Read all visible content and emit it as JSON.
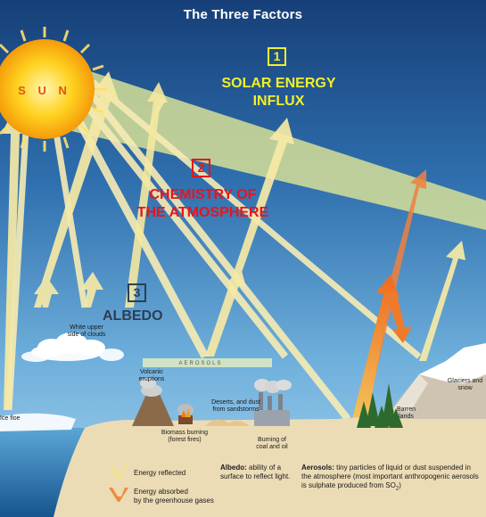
{
  "title": "The Three Factors",
  "sun_label": "S U N",
  "factors": [
    {
      "number": "1",
      "line1": "SOLAR ENERGY",
      "line2": "INFLUX"
    },
    {
      "number": "2",
      "line1": "CHEMISTRY OF",
      "line2": "THE ATMOSPHERE"
    },
    {
      "number": "3",
      "line1": "ALBEDO",
      "line2": ""
    }
  ],
  "labels": {
    "clouds": [
      "White upper",
      "side of clouds"
    ],
    "aerosols": "AEROSOLS",
    "volcanic": [
      "Volcanic",
      "eruptions"
    ],
    "deserts": [
      "Deserts, and dust",
      "from sandstorms"
    ],
    "biomass": [
      "Biomass burning",
      "(forest fires)"
    ],
    "coal": [
      "Burning of",
      "coal and oil"
    ],
    "ice_floe": "Ice floe",
    "barren": [
      "Barren",
      "lands"
    ],
    "glaciers": [
      "Glaciers and",
      "snow"
    ]
  },
  "legend": {
    "reflected": "Energy reflected",
    "absorbed": [
      "Energy absorbed",
      "by the greenhouse gases"
    ],
    "albedo_term": "Albedo:",
    "albedo_def": [
      "ability of a",
      "surface to reflect light."
    ],
    "aerosols_term": "Aerosols:",
    "aerosols_def": [
      "tiny particles of liquid or dust suspended in",
      "the atmosphere (most important anthropogenic aerosols",
      "is sulphate produced from SO"
    ],
    "so2_sub": "2",
    "aerosols_close": ")"
  },
  "colors": {
    "sky_top": "#1a4f8f",
    "sky_bottom": "#8fc4e6",
    "influx_band": "#c9d98a",
    "factor_yellow": "#f2ef2a",
    "factor_red": "#e8141c",
    "factor_dark": "#2b3f55",
    "ray": "#f6ecb0",
    "absorbed": "#f27a2a",
    "ground": "#ecdcb6",
    "sea": "#3f8fc4"
  }
}
